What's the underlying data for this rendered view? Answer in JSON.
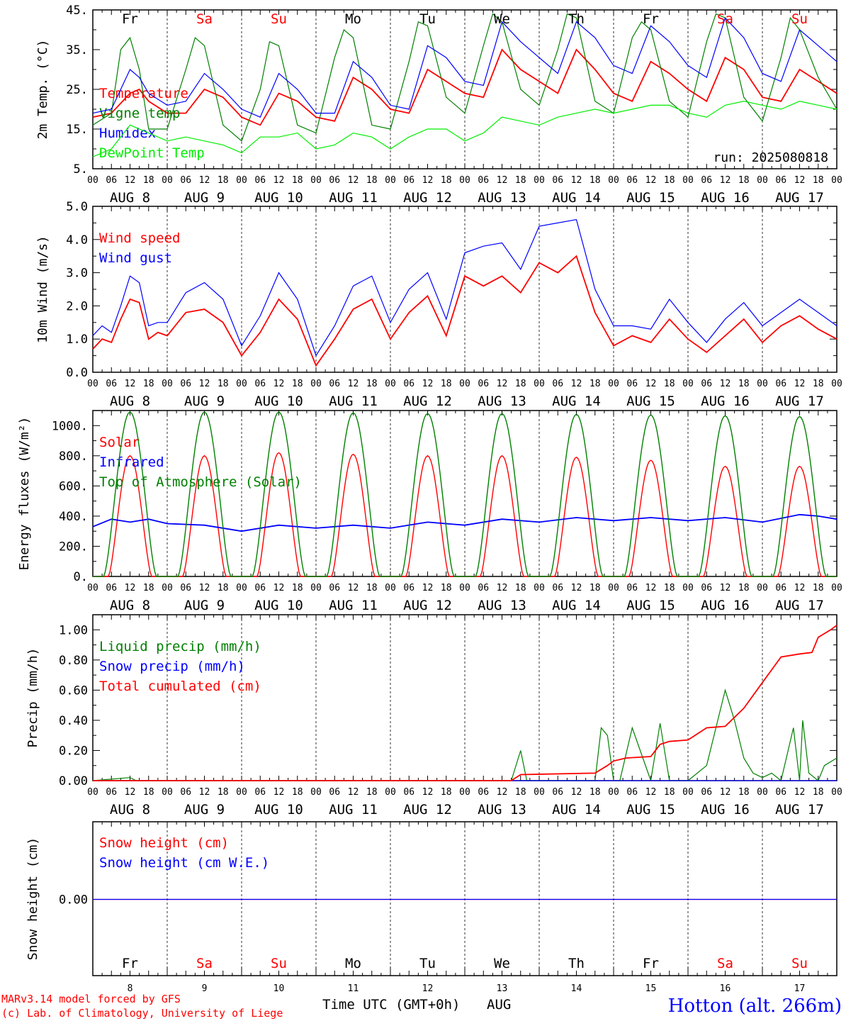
{
  "chart_data": [
    {
      "type": "line",
      "ylabel": "2m Temp. (°C)",
      "ylim": [
        5,
        45
      ],
      "yticks": [
        "45.",
        "35.",
        "25.",
        "15.",
        "5."
      ],
      "ytick_values": [
        45,
        35,
        25,
        15,
        5
      ],
      "day_names": [
        "Fr",
        "Sa",
        "Su",
        "Mo",
        "Tu",
        "We",
        "Th",
        "Fr",
        "Sa",
        "Su"
      ],
      "run_label": "run: 2025080818",
      "x_hours": [
        0,
        6,
        9,
        12,
        15,
        18,
        21,
        24,
        30,
        36,
        42,
        48,
        54,
        60,
        66,
        72,
        78,
        84,
        90,
        96,
        102,
        108,
        114,
        120,
        126,
        132,
        138,
        144,
        150,
        156,
        162,
        168,
        174,
        180,
        186,
        192,
        198,
        204,
        210,
        216,
        222,
        228,
        234,
        240
      ],
      "series": [
        {
          "name": "Temperature",
          "color": "#ff0000",
          "x": [
            0,
            6,
            12,
            15,
            18,
            24,
            30,
            36,
            42,
            48,
            54,
            60,
            66,
            72,
            78,
            84,
            90,
            96,
            102,
            108,
            114,
            120,
            126,
            132,
            138,
            144,
            150,
            156,
            162,
            168,
            174,
            180,
            186,
            192,
            198,
            204,
            210,
            216,
            222,
            228,
            234,
            240
          ],
          "values": [
            18,
            19,
            24,
            25,
            22,
            19,
            19,
            25,
            23,
            18,
            16,
            24,
            22,
            18,
            17,
            28,
            25,
            20,
            19,
            30,
            27,
            24,
            23,
            35,
            30,
            27,
            24,
            35,
            30,
            24,
            22,
            32,
            29,
            25,
            22,
            33,
            30,
            23,
            22,
            30,
            27,
            24
          ]
        },
        {
          "name": "Vigne temp",
          "color": "#008000",
          "x": [
            0,
            6,
            9,
            12,
            15,
            18,
            24,
            30,
            33,
            36,
            42,
            48,
            54,
            57,
            60,
            66,
            72,
            78,
            81,
            84,
            90,
            96,
            102,
            105,
            108,
            114,
            120,
            126,
            129,
            132,
            138,
            144,
            150,
            153,
            156,
            162,
            168,
            174,
            177,
            180,
            186,
            192,
            198,
            201,
            204,
            210,
            216,
            222,
            225,
            228,
            234,
            240
          ],
          "values": [
            16,
            19,
            35,
            38,
            30,
            15,
            15,
            30,
            38,
            36,
            16,
            12,
            25,
            37,
            36,
            16,
            14,
            33,
            40,
            38,
            16,
            15,
            32,
            42,
            41,
            23,
            19,
            36,
            44,
            42,
            25,
            21,
            35,
            44,
            43,
            22,
            19,
            38,
            42,
            40,
            22,
            18,
            37,
            44,
            43,
            23,
            17,
            33,
            43,
            40,
            28,
            20
          ]
        },
        {
          "name": "Humidex",
          "color": "#0000ff",
          "x": [
            0,
            6,
            12,
            15,
            18,
            24,
            30,
            36,
            42,
            48,
            54,
            60,
            66,
            72,
            78,
            84,
            90,
            96,
            102,
            108,
            114,
            120,
            126,
            132,
            138,
            144,
            150,
            156,
            162,
            168,
            174,
            180,
            186,
            192,
            198,
            204,
            210,
            216,
            222,
            228,
            234,
            240
          ],
          "values": [
            19,
            20,
            30,
            28,
            24,
            21,
            22,
            29,
            25,
            20,
            18,
            29,
            25,
            19,
            19,
            32,
            28,
            21,
            20,
            36,
            33,
            27,
            26,
            42,
            37,
            33,
            29,
            42,
            38,
            31,
            29,
            41,
            37,
            31,
            28,
            43,
            38,
            29,
            27,
            40,
            36,
            32
          ]
        },
        {
          "name": "DewPoint Temp",
          "color": "#00ee00",
          "x": [
            0,
            6,
            12,
            18,
            24,
            30,
            36,
            42,
            48,
            54,
            60,
            66,
            72,
            78,
            84,
            90,
            96,
            102,
            108,
            114,
            120,
            126,
            132,
            138,
            144,
            150,
            156,
            162,
            168,
            174,
            180,
            186,
            192,
            198,
            204,
            210,
            216,
            222,
            228,
            234,
            240
          ],
          "values": [
            8,
            10,
            16,
            14,
            12,
            13,
            12,
            11,
            9,
            13,
            13,
            14,
            10,
            11,
            14,
            13,
            10,
            13,
            15,
            15,
            12,
            14,
            18,
            17,
            16,
            18,
            19,
            20,
            19,
            20,
            21,
            21,
            19,
            18,
            21,
            22,
            21,
            20,
            22,
            21,
            20
          ]
        }
      ]
    },
    {
      "type": "line",
      "ylabel": "10m Wind (m/s)",
      "ylim": [
        0,
        5
      ],
      "yticks": [
        "5.0",
        "4.0",
        "3.0",
        "2.0",
        "1.0",
        "0.0"
      ],
      "ytick_values": [
        5,
        4,
        3,
        2,
        1,
        0
      ],
      "series": [
        {
          "name": "Wind speed",
          "color": "#ff0000",
          "x": [
            0,
            3,
            6,
            9,
            12,
            15,
            18,
            21,
            24,
            30,
            36,
            42,
            48,
            54,
            60,
            66,
            72,
            78,
            84,
            90,
            96,
            102,
            108,
            114,
            120,
            126,
            132,
            138,
            144,
            150,
            156,
            162,
            168,
            174,
            180,
            186,
            192,
            198,
            204,
            210,
            216,
            222,
            228,
            234,
            240
          ],
          "values": [
            0.7,
            1.0,
            0.9,
            1.6,
            2.2,
            2.1,
            1.0,
            1.2,
            1.1,
            1.8,
            1.9,
            1.5,
            0.5,
            1.2,
            2.2,
            1.6,
            0.2,
            1.0,
            1.9,
            2.2,
            1.0,
            1.8,
            2.3,
            1.1,
            2.9,
            2.6,
            2.9,
            2.4,
            3.3,
            3.0,
            3.5,
            1.8,
            0.8,
            1.1,
            0.9,
            1.6,
            1.0,
            0.6,
            1.1,
            1.6,
            0.9,
            1.4,
            1.7,
            1.3,
            1.0
          ]
        },
        {
          "name": "Wind gust",
          "color": "#0000ff",
          "x": [
            0,
            3,
            6,
            9,
            12,
            15,
            18,
            21,
            24,
            30,
            36,
            42,
            48,
            54,
            60,
            66,
            72,
            78,
            84,
            90,
            96,
            102,
            108,
            114,
            120,
            126,
            132,
            138,
            144,
            150,
            156,
            162,
            168,
            174,
            180,
            186,
            192,
            198,
            204,
            210,
            216,
            222,
            228,
            234,
            240
          ],
          "values": [
            1.1,
            1.4,
            1.2,
            2.0,
            2.9,
            2.7,
            1.4,
            1.5,
            1.5,
            2.4,
            2.7,
            2.2,
            0.8,
            1.7,
            3.0,
            2.2,
            0.5,
            1.4,
            2.6,
            2.9,
            1.5,
            2.5,
            3.0,
            1.6,
            3.6,
            3.8,
            3.9,
            3.1,
            4.4,
            4.5,
            4.6,
            2.5,
            1.4,
            1.4,
            1.3,
            2.2,
            1.5,
            0.9,
            1.6,
            2.1,
            1.4,
            1.8,
            2.2,
            1.8,
            1.4
          ]
        }
      ]
    },
    {
      "type": "line",
      "ylabel": "Energy fluxes (W/m²)",
      "ylim": [
        0,
        1100
      ],
      "yticks": [
        "1000.",
        "800.",
        "600.",
        "400.",
        "200.",
        "0."
      ],
      "ytick_values": [
        1000,
        800,
        600,
        400,
        200,
        0
      ],
      "series": [
        {
          "name": "Solar",
          "color": "#ff0000",
          "daily_peaks": [
            800,
            800,
            820,
            810,
            800,
            800,
            790,
            770,
            730,
            730
          ]
        },
        {
          "name": "Infrared",
          "color": "#0000ff",
          "x": [
            0,
            6,
            12,
            18,
            24,
            36,
            48,
            60,
            72,
            84,
            96,
            108,
            120,
            132,
            144,
            156,
            168,
            180,
            192,
            204,
            216,
            228,
            234,
            240
          ],
          "values": [
            330,
            380,
            360,
            380,
            350,
            340,
            300,
            340,
            320,
            340,
            320,
            360,
            340,
            380,
            360,
            390,
            370,
            390,
            370,
            390,
            360,
            410,
            400,
            380
          ]
        },
        {
          "name": "Top of Atmosphere (Solar)",
          "color": "#008000",
          "daily_peaks": [
            1090,
            1090,
            1090,
            1085,
            1080,
            1080,
            1075,
            1070,
            1065,
            1060
          ]
        }
      ]
    },
    {
      "type": "line",
      "ylabel": "Precip (mm/h)",
      "ylim": [
        0,
        1.1
      ],
      "yticks": [
        "1.00",
        "0.80",
        "0.60",
        "0.40",
        "0.20",
        "0.00"
      ],
      "ytick_values": [
        1.0,
        0.8,
        0.6,
        0.4,
        0.2,
        0.0
      ],
      "series": [
        {
          "name": "Liquid precip (mm/h)",
          "color": "#008000",
          "x": [
            0,
            12,
            14,
            135,
            138,
            140,
            144,
            162,
            164,
            166,
            168,
            170,
            174,
            180,
            183,
            186,
            188,
            192,
            198,
            204,
            207,
            210,
            213,
            216,
            219,
            222,
            226,
            228,
            229,
            231,
            234,
            236,
            240
          ],
          "values": [
            0,
            0.02,
            0,
            0,
            0.2,
            0,
            0,
            0,
            0.35,
            0.3,
            0,
            0,
            0.35,
            0,
            0.38,
            0,
            0,
            0,
            0.1,
            0.6,
            0.4,
            0.15,
            0.05,
            0.02,
            0.05,
            0,
            0.35,
            0,
            0.4,
            0.05,
            0,
            0.1,
            0.15
          ]
        },
        {
          "name": "Snow precip (mm/h)",
          "color": "#0000ff",
          "x": [
            0,
            240
          ],
          "values": [
            0,
            0
          ]
        },
        {
          "name": "Total cumulated (cm)",
          "color": "#ff0000",
          "x": [
            0,
            135,
            138,
            162,
            166,
            168,
            172,
            180,
            183,
            186,
            192,
            198,
            204,
            210,
            216,
            222,
            228,
            232,
            234,
            238,
            240
          ],
          "values": [
            0,
            0,
            0.04,
            0.05,
            0.1,
            0.13,
            0.15,
            0.16,
            0.24,
            0.26,
            0.27,
            0.35,
            0.36,
            0.48,
            0.65,
            0.82,
            0.84,
            0.85,
            0.95,
            1.0,
            1.03
          ]
        }
      ]
    },
    {
      "type": "line",
      "ylabel": "Snow height (cm)",
      "yticks": [
        "0.00"
      ],
      "ytick_values": [
        0
      ],
      "series": [
        {
          "name": "Snow height (cm)",
          "color": "#ff0000",
          "x": [
            0,
            240
          ],
          "values": [
            0,
            0
          ]
        },
        {
          "name": "Snow height (cm W.E.)",
          "color": "#0000ff",
          "x": [
            0,
            240
          ],
          "values": [
            0,
            0
          ]
        }
      ]
    }
  ],
  "x_axis": {
    "hour_labels": [
      "00",
      "06",
      "12",
      "18"
    ],
    "final_hour_label": "00",
    "date_labels": [
      "AUG  8",
      "AUG  9",
      "AUG 10",
      "AUG 11",
      "AUG 12",
      "AUG 13",
      "AUG 14",
      "AUG 15",
      "AUG 16",
      "AUG 17"
    ],
    "bottom_day_numbers": [
      "8",
      "9",
      "10",
      "11",
      "12",
      "13",
      "14",
      "15",
      "16",
      "17"
    ],
    "bottom_day_names": [
      "Fr",
      "Sa",
      "Su",
      "Mo",
      "Tu",
      "We",
      "Th",
      "Fr",
      "Sa",
      "Su"
    ],
    "weekend_days": [
      1,
      2,
      8,
      9
    ],
    "xlabel": "Time UTC (GMT+0h)",
    "month": "AUG"
  },
  "footer": {
    "model_credit": "MARv3.14 model forced by GFS",
    "copyright": "(c) Lab. of Climatology, University of Liege",
    "location": "Hotton (alt. 266m)"
  },
  "colors": {
    "red": "#ff0000",
    "green": "#008000",
    "blue": "#0000ff",
    "lightgreen": "#00ee00",
    "axis": "#000000"
  }
}
